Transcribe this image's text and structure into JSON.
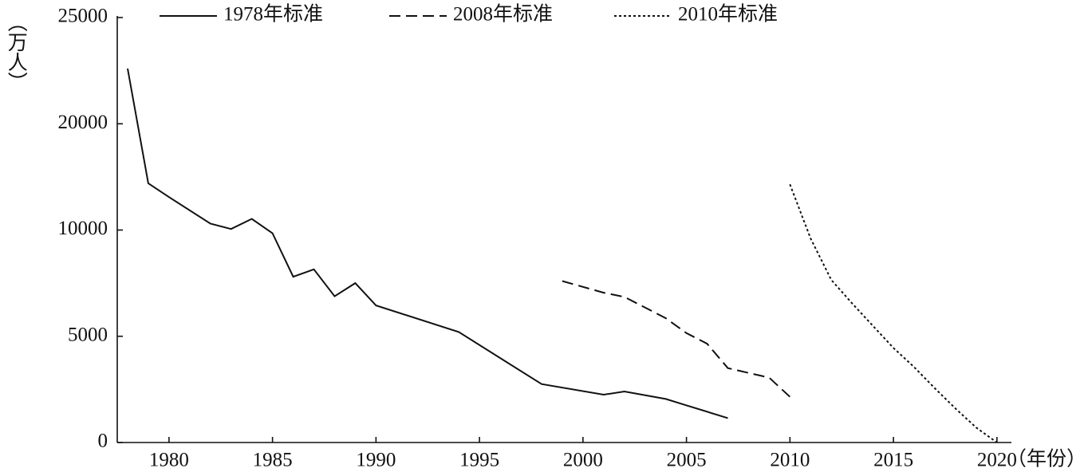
{
  "chart_data": {
    "type": "line",
    "x_label": "（年份）",
    "y_label": "（万人）",
    "xlim": [
      1977.5,
      2020.7
    ],
    "xticks": [
      1980,
      1985,
      1990,
      1995,
      2000,
      2005,
      2010,
      2015,
      2020
    ],
    "ylim": [
      0,
      25000
    ],
    "yticks": [
      0,
      5000,
      10000,
      20000,
      25000
    ],
    "grid": false,
    "legend": "top",
    "series": [
      {
        "name": "1978年标准",
        "color": "#111111",
        "dash": "solid",
        "x": [
          1978,
          1979,
          1980,
          1982,
          1983,
          1984,
          1985,
          1986,
          1987,
          1988,
          1989,
          1990,
          1994,
          1998,
          2001,
          2002,
          2004,
          2005,
          2007
        ],
        "values": [
          22600,
          14400,
          13100,
          10600,
          10100,
          11050,
          9850,
          7800,
          8150,
          6880,
          7500,
          6450,
          5200,
          2750,
          2250,
          2400,
          2050,
          1750,
          1150
        ]
      },
      {
        "name": "2008年标准",
        "color": "#111111",
        "dash": "dashed",
        "x": [
          1999,
          2001,
          2002,
          2004,
          2005,
          2006,
          2007,
          2009,
          2010
        ],
        "values": [
          7600,
          7050,
          6850,
          5850,
          5150,
          4650,
          3500,
          3050,
          2150
        ]
      },
      {
        "name": "2010年标准",
        "color": "#111111",
        "dash": "dotted",
        "x": [
          2010,
          2011,
          2012,
          2013,
          2014,
          2015,
          2016,
          2017,
          2018,
          2019,
          2020
        ],
        "values": [
          14300,
          9600,
          7650,
          6550,
          5500,
          4450,
          3550,
          2550,
          1600,
          700,
          0
        ]
      }
    ]
  }
}
